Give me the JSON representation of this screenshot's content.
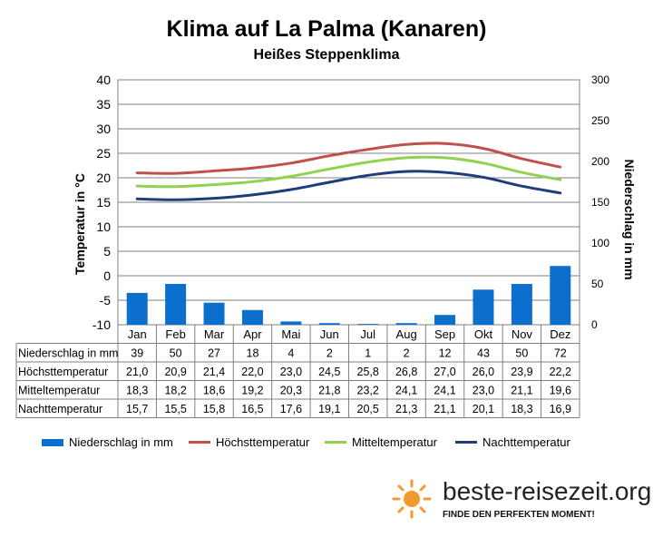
{
  "title": "Klima auf La Palma (Kanaren)",
  "subtitle": "Heißes Steppenklima",
  "logo": {
    "text": "beste-reisezeit.org",
    "tagline": "FINDE DEN PERFEKTEN MOMENT!"
  },
  "chart_data": {
    "type": "bar+line",
    "title": "Klima auf La Palma (Kanaren)",
    "subtitle": "Heißes Steppenklima",
    "categories": [
      "Jan",
      "Feb",
      "Mar",
      "Apr",
      "Mai",
      "Jun",
      "Jul",
      "Aug",
      "Sep",
      "Okt",
      "Nov",
      "Dez"
    ],
    "ylabel_left": "Temperatur in °C",
    "ylabel_right": "Niederschlag in mm",
    "ylim_left": [
      -10,
      40
    ],
    "yticks_left": [
      40,
      35,
      30,
      25,
      20,
      15,
      10,
      5,
      0,
      -5,
      -10
    ],
    "ylim_right": [
      0,
      300
    ],
    "yticks_right": [
      300,
      250,
      200,
      150,
      100,
      50,
      0
    ],
    "grid": true,
    "legend_position": "bottom",
    "series": [
      {
        "name": "Niederschlag in mm",
        "kind": "bar",
        "axis": "right",
        "color": "#0c6fcd",
        "values": [
          39,
          50,
          27,
          18,
          4,
          2,
          1,
          2,
          12,
          43,
          50,
          72
        ],
        "labels": [
          "39",
          "50",
          "27",
          "18",
          "4",
          "2",
          "1",
          "2",
          "12",
          "43",
          "50",
          "72"
        ]
      },
      {
        "name": "Höchsttemperatur",
        "kind": "line",
        "axis": "left",
        "color": "#c0504d",
        "values": [
          21.0,
          20.9,
          21.4,
          22.0,
          23.0,
          24.5,
          25.8,
          26.8,
          27.0,
          26.0,
          23.9,
          22.2
        ],
        "labels": [
          "21,0",
          "20,9",
          "21,4",
          "22,0",
          "23,0",
          "24,5",
          "25,8",
          "26,8",
          "27,0",
          "26,0",
          "23,9",
          "22,2"
        ]
      },
      {
        "name": "Mitteltemperatur",
        "kind": "line",
        "axis": "left",
        "color": "#92d050",
        "values": [
          18.3,
          18.2,
          18.6,
          19.2,
          20.3,
          21.8,
          23.2,
          24.1,
          24.1,
          23.0,
          21.1,
          19.6
        ],
        "labels": [
          "18,3",
          "18,2",
          "18,6",
          "19,2",
          "20,3",
          "21,8",
          "23,2",
          "24,1",
          "24,1",
          "23,0",
          "21,1",
          "19,6"
        ]
      },
      {
        "name": "Nachttemperatur",
        "kind": "line",
        "axis": "left",
        "color": "#1f3d7a",
        "values": [
          15.7,
          15.5,
          15.8,
          16.5,
          17.6,
          19.1,
          20.5,
          21.3,
          21.1,
          20.1,
          18.3,
          16.9
        ],
        "labels": [
          "15,7",
          "15,5",
          "15,8",
          "16,5",
          "17,6",
          "19,1",
          "20,5",
          "21,3",
          "21,1",
          "20,1",
          "18,3",
          "16,9"
        ]
      }
    ]
  }
}
